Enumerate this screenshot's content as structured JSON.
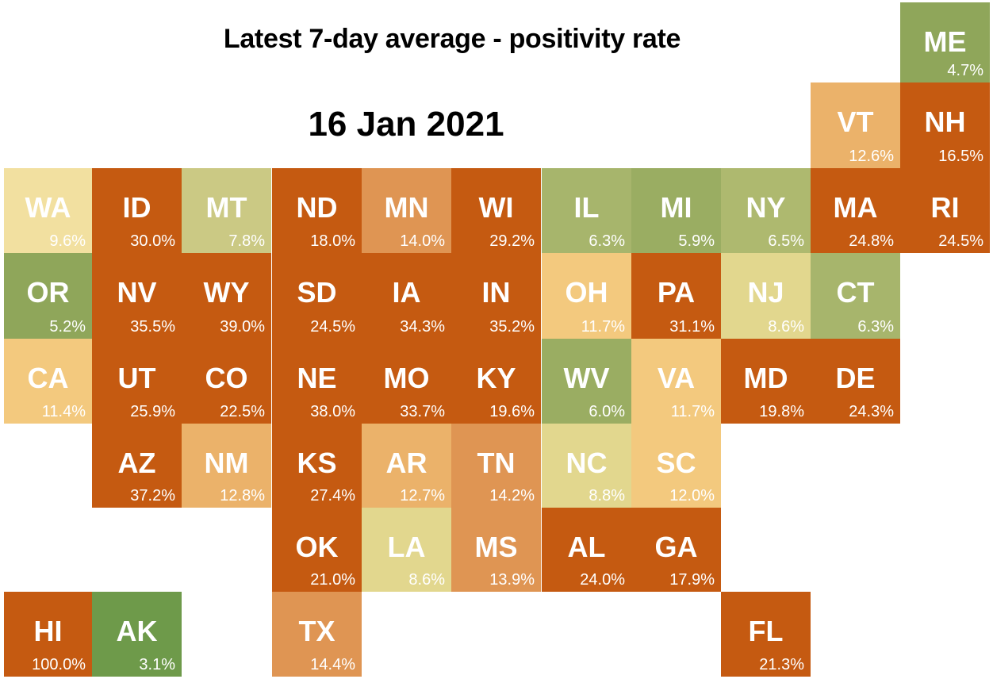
{
  "title": "Latest 7-day average - positivity rate",
  "date": "16 Jan 2021",
  "palette": {
    "dark_orange": "#C55A11",
    "orange": "#DF9553",
    "light_orange": "#EBB26A",
    "peach": "#F3C97E",
    "pale_yellow": "#F2E0A0",
    "yellow_green": "#E2D78E",
    "khaki_green": "#CBC984",
    "light_green": "#A7B56C",
    "green": "#8FA65A",
    "dark_green": "#6E9A4A"
  },
  "states": [
    {
      "abbr": "ME",
      "value": "4.7%",
      "row": 0,
      "col": 10,
      "color": "#8FA65A"
    },
    {
      "abbr": "VT",
      "value": "12.6%",
      "row": 1,
      "col": 9,
      "color": "#EBB26A"
    },
    {
      "abbr": "NH",
      "value": "16.5%",
      "row": 1,
      "col": 10,
      "color": "#C55A11"
    },
    {
      "abbr": "WA",
      "value": "9.6%",
      "row": 2,
      "col": 0,
      "color": "#F2E0A0"
    },
    {
      "abbr": "ID",
      "value": "30.0%",
      "row": 2,
      "col": 1,
      "color": "#C55A11"
    },
    {
      "abbr": "MT",
      "value": "7.8%",
      "row": 2,
      "col": 2,
      "color": "#CBC984"
    },
    {
      "abbr": "ND",
      "value": "18.0%",
      "row": 2,
      "col": 3,
      "color": "#C55A11"
    },
    {
      "abbr": "MN",
      "value": "14.0%",
      "row": 2,
      "col": 4,
      "color": "#DF9553"
    },
    {
      "abbr": "WI",
      "value": "29.2%",
      "row": 2,
      "col": 5,
      "color": "#C55A11"
    },
    {
      "abbr": "IL",
      "value": "6.3%",
      "row": 2,
      "col": 6,
      "color": "#A7B56C"
    },
    {
      "abbr": "MI",
      "value": "5.9%",
      "row": 2,
      "col": 7,
      "color": "#9AAD62"
    },
    {
      "abbr": "NY",
      "value": "6.5%",
      "row": 2,
      "col": 8,
      "color": "#AEB96F"
    },
    {
      "abbr": "MA",
      "value": "24.8%",
      "row": 2,
      "col": 9,
      "color": "#C55A11"
    },
    {
      "abbr": "RI",
      "value": "24.5%",
      "row": 2,
      "col": 10,
      "color": "#C55A11"
    },
    {
      "abbr": "OR",
      "value": "5.2%",
      "row": 3,
      "col": 0,
      "color": "#8FA65A"
    },
    {
      "abbr": "NV",
      "value": "35.5%",
      "row": 3,
      "col": 1,
      "color": "#C55A11"
    },
    {
      "abbr": "WY",
      "value": "39.0%",
      "row": 3,
      "col": 2,
      "color": "#C55A11"
    },
    {
      "abbr": "SD",
      "value": "24.5%",
      "row": 3,
      "col": 3,
      "color": "#C55A11"
    },
    {
      "abbr": "IA",
      "value": "34.3%",
      "row": 3,
      "col": 4,
      "color": "#C55A11"
    },
    {
      "abbr": "IN",
      "value": "35.2%",
      "row": 3,
      "col": 5,
      "color": "#C55A11"
    },
    {
      "abbr": "OH",
      "value": "11.7%",
      "row": 3,
      "col": 6,
      "color": "#F3C97E"
    },
    {
      "abbr": "PA",
      "value": "31.1%",
      "row": 3,
      "col": 7,
      "color": "#C55A11"
    },
    {
      "abbr": "NJ",
      "value": "8.6%",
      "row": 3,
      "col": 8,
      "color": "#E2D78E"
    },
    {
      "abbr": "CT",
      "value": "6.3%",
      "row": 3,
      "col": 9,
      "color": "#A7B56C"
    },
    {
      "abbr": "CA",
      "value": "11.4%",
      "row": 4,
      "col": 0,
      "color": "#F3C97E"
    },
    {
      "abbr": "UT",
      "value": "25.9%",
      "row": 4,
      "col": 1,
      "color": "#C55A11"
    },
    {
      "abbr": "CO",
      "value": "22.5%",
      "row": 4,
      "col": 2,
      "color": "#C55A11"
    },
    {
      "abbr": "NE",
      "value": "38.0%",
      "row": 4,
      "col": 3,
      "color": "#C55A11"
    },
    {
      "abbr": "MO",
      "value": "33.7%",
      "row": 4,
      "col": 4,
      "color": "#C55A11"
    },
    {
      "abbr": "KY",
      "value": "19.6%",
      "row": 4,
      "col": 5,
      "color": "#C55A11"
    },
    {
      "abbr": "WV",
      "value": "6.0%",
      "row": 4,
      "col": 6,
      "color": "#9AAD62"
    },
    {
      "abbr": "VA",
      "value": "11.7%",
      "row": 4,
      "col": 7,
      "color": "#F3C97E"
    },
    {
      "abbr": "MD",
      "value": "19.8%",
      "row": 4,
      "col": 8,
      "color": "#C55A11"
    },
    {
      "abbr": "DE",
      "value": "24.3%",
      "row": 4,
      "col": 9,
      "color": "#C55A11"
    },
    {
      "abbr": "AZ",
      "value": "37.2%",
      "row": 5,
      "col": 1,
      "color": "#C55A11"
    },
    {
      "abbr": "NM",
      "value": "12.8%",
      "row": 5,
      "col": 2,
      "color": "#EBB26A"
    },
    {
      "abbr": "KS",
      "value": "27.4%",
      "row": 5,
      "col": 3,
      "color": "#C55A11"
    },
    {
      "abbr": "AR",
      "value": "12.7%",
      "row": 5,
      "col": 4,
      "color": "#EBB26A"
    },
    {
      "abbr": "TN",
      "value": "14.2%",
      "row": 5,
      "col": 5,
      "color": "#DF9553"
    },
    {
      "abbr": "NC",
      "value": "8.8%",
      "row": 5,
      "col": 6,
      "color": "#E2D78E"
    },
    {
      "abbr": "SC",
      "value": "12.0%",
      "row": 5,
      "col": 7,
      "color": "#F3C97E"
    },
    {
      "abbr": "OK",
      "value": "21.0%",
      "row": 6,
      "col": 3,
      "color": "#C55A11"
    },
    {
      "abbr": "LA",
      "value": "8.6%",
      "row": 6,
      "col": 4,
      "color": "#E2D78E"
    },
    {
      "abbr": "MS",
      "value": "13.9%",
      "row": 6,
      "col": 5,
      "color": "#DF9553"
    },
    {
      "abbr": "AL",
      "value": "24.0%",
      "row": 6,
      "col": 6,
      "color": "#C55A11"
    },
    {
      "abbr": "GA",
      "value": "17.9%",
      "row": 6,
      "col": 7,
      "color": "#C55A11"
    },
    {
      "abbr": "HI",
      "value": "100.0%",
      "row": 7,
      "col": 0,
      "color": "#C55A11"
    },
    {
      "abbr": "AK",
      "value": "3.1%",
      "row": 7,
      "col": 1,
      "color": "#6E9A4A"
    },
    {
      "abbr": "TX",
      "value": "14.4%",
      "row": 7,
      "col": 3,
      "color": "#DF9553"
    },
    {
      "abbr": "FL",
      "value": "21.3%",
      "row": 7,
      "col": 8,
      "color": "#C55A11"
    }
  ]
}
